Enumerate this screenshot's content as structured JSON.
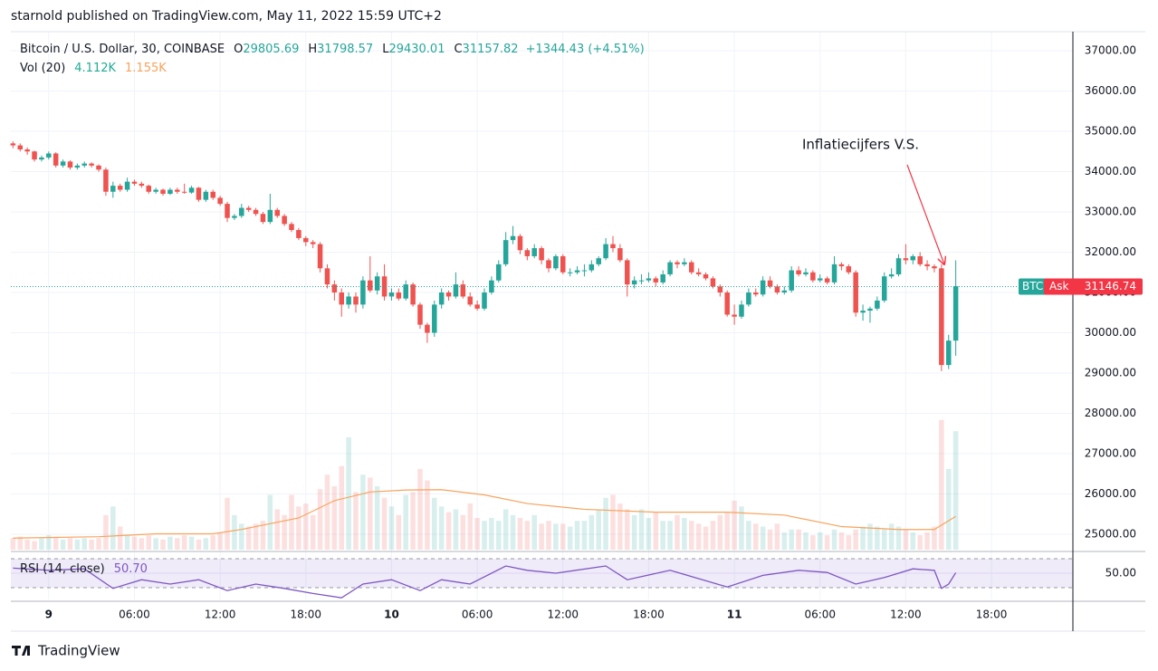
{
  "chart_data": {
    "type": "candlestick",
    "published": "starnold published on TradingView.com, May 11, 2022 15:59 UTC+2",
    "symbol": "Bitcoin / U.S. Dollar, 30, COINBASE",
    "ohlc_letters": [
      "O",
      "H",
      "L",
      "C"
    ],
    "change_label": "+1344.43 (+4.51%)",
    "annotation": "Inflatiecijfers V.S.",
    "logo": "TradingView",
    "up_color": "#26a69a",
    "down_color": "#ef5350",
    "xlim": [
      -0.3,
      148.4
    ],
    "xticks": [
      {
        "value": 5,
        "label": "9"
      },
      {
        "value": 17,
        "label": "06:00"
      },
      {
        "value": 29,
        "label": "12:00"
      },
      {
        "value": 41,
        "label": "18:00"
      },
      {
        "value": 53,
        "label": "10"
      },
      {
        "value": 65,
        "label": "06:00"
      },
      {
        "value": 77,
        "label": "12:00"
      },
      {
        "value": 89,
        "label": "18:00"
      },
      {
        "value": 101,
        "label": "11"
      },
      {
        "value": 113,
        "label": "06:00"
      },
      {
        "value": 125,
        "label": "12:00"
      },
      {
        "value": 137,
        "label": "18:00"
      }
    ],
    "ylim": [
      24618,
      37472
    ],
    "yticks": [
      {
        "value": 25000,
        "label": "25000.00"
      },
      {
        "value": 26000,
        "label": "26000.00"
      },
      {
        "value": 27000,
        "label": "27000.00"
      },
      {
        "value": 28000,
        "label": "28000.00"
      },
      {
        "value": 29000,
        "label": "29000.00"
      },
      {
        "value": 30000,
        "label": "30000.00"
      },
      {
        "value": 31000,
        "label": "31000.00"
      },
      {
        "value": 32000,
        "label": "32000.00"
      },
      {
        "value": 33000,
        "label": "33000.00"
      },
      {
        "value": 34000,
        "label": "34000.00"
      },
      {
        "value": 35000,
        "label": "35000.00"
      },
      {
        "value": 36000,
        "label": "36000.00"
      },
      {
        "value": 37000,
        "label": "37000.00"
      }
    ],
    "grid": true,
    "last_price": 31146.74,
    "price_tag": "BTC",
    "ask_label": "Ask",
    "candles": [
      [
        34700,
        34750,
        34580,
        34650
      ],
      [
        34650,
        34700,
        34500,
        34550
      ],
      [
        34550,
        34600,
        34420,
        34500
      ],
      [
        34500,
        34520,
        34250,
        34300
      ],
      [
        34300,
        34400,
        34250,
        34350
      ],
      [
        34350,
        34500,
        34300,
        34450
      ],
      [
        34450,
        34480,
        34100,
        34150
      ],
      [
        34150,
        34300,
        34100,
        34250
      ],
      [
        34250,
        34280,
        34050,
        34100
      ],
      [
        34100,
        34200,
        34050,
        34150
      ],
      [
        34150,
        34250,
        34100,
        34200
      ],
      [
        34200,
        34230,
        34100,
        34150
      ],
      [
        34150,
        34180,
        34000,
        34050
      ],
      [
        34050,
        34100,
        33400,
        33500
      ],
      [
        33500,
        33750,
        33350,
        33650
      ],
      [
        33650,
        33700,
        33500,
        33550
      ],
      [
        33550,
        33850,
        33500,
        33750
      ],
      [
        33750,
        33800,
        33650,
        33700
      ],
      [
        33700,
        33750,
        33600,
        33650
      ],
      [
        33650,
        33680,
        33450,
        33500
      ],
      [
        33500,
        33600,
        33450,
        33550
      ],
      [
        33550,
        33580,
        33400,
        33450
      ],
      [
        33450,
        33600,
        33420,
        33550
      ],
      [
        33550,
        33600,
        33450,
        33500
      ],
      [
        33500,
        33700,
        33450,
        33480
      ],
      [
        33480,
        33650,
        33450,
        33600
      ],
      [
        33600,
        33620,
        33250,
        33300
      ],
      [
        33300,
        33550,
        33250,
        33500
      ],
      [
        33500,
        33550,
        33300,
        33350
      ],
      [
        33350,
        33400,
        33150,
        33200
      ],
      [
        33200,
        33250,
        32750,
        32850
      ],
      [
        32850,
        32950,
        32800,
        32900
      ],
      [
        32900,
        33200,
        32850,
        33100
      ],
      [
        33100,
        33150,
        33000,
        33050
      ],
      [
        33050,
        33100,
        32900,
        32950
      ],
      [
        32950,
        33000,
        32700,
        32750
      ],
      [
        32750,
        33450,
        32700,
        33050
      ],
      [
        33050,
        33100,
        32850,
        32900
      ],
      [
        32900,
        32950,
        32650,
        32700
      ],
      [
        32700,
        32750,
        32500,
        32550
      ],
      [
        32550,
        32600,
        32300,
        32350
      ],
      [
        32350,
        32400,
        32150,
        32250
      ],
      [
        32250,
        32300,
        32100,
        32200
      ],
      [
        32200,
        32250,
        31500,
        31600
      ],
      [
        31600,
        31700,
        31100,
        31200
      ],
      [
        31200,
        31300,
        30800,
        31000
      ],
      [
        31000,
        31100,
        30400,
        30700
      ],
      [
        30700,
        31000,
        30600,
        30900
      ],
      [
        30900,
        31000,
        30500,
        30700
      ],
      [
        30700,
        31400,
        30600,
        31300
      ],
      [
        31300,
        31900,
        31000,
        31050
      ],
      [
        31050,
        31500,
        30950,
        31400
      ],
      [
        31400,
        31700,
        30800,
        30900
      ],
      [
        30900,
        31100,
        30800,
        31000
      ],
      [
        31000,
        31100,
        30800,
        30850
      ],
      [
        30850,
        31300,
        30800,
        31200
      ],
      [
        31200,
        31250,
        30650,
        30700
      ],
      [
        30700,
        30750,
        30100,
        30200
      ],
      [
        30200,
        30250,
        29750,
        30000
      ],
      [
        30000,
        30800,
        29900,
        30700
      ],
      [
        30700,
        31100,
        30600,
        31000
      ],
      [
        31000,
        31050,
        30800,
        30900
      ],
      [
        30900,
        31500,
        30850,
        31200
      ],
      [
        31200,
        31300,
        30850,
        30900
      ],
      [
        30900,
        31000,
        30650,
        30700
      ],
      [
        30700,
        30800,
        30550,
        30600
      ],
      [
        30600,
        31100,
        30550,
        31000
      ],
      [
        31000,
        31400,
        30950,
        31300
      ],
      [
        31300,
        31800,
        31250,
        31700
      ],
      [
        31700,
        32500,
        31650,
        32300
      ],
      [
        32300,
        32650,
        32200,
        32400
      ],
      [
        32400,
        32450,
        31950,
        32050
      ],
      [
        32050,
        32100,
        31800,
        31900
      ],
      [
        31900,
        32200,
        31850,
        32100
      ],
      [
        32100,
        32150,
        31700,
        31800
      ],
      [
        31800,
        31850,
        31500,
        31600
      ],
      [
        31600,
        31950,
        31550,
        31900
      ],
      [
        31900,
        31950,
        31450,
        31500
      ],
      [
        31500,
        31600,
        31400,
        31500
      ],
      [
        31500,
        31650,
        31450,
        31550
      ],
      [
        31550,
        31700,
        31400,
        31550
      ],
      [
        31550,
        31800,
        31500,
        31700
      ],
      [
        31700,
        31900,
        31650,
        31850
      ],
      [
        31850,
        32350,
        31800,
        32200
      ],
      [
        32200,
        32400,
        32000,
        32100
      ],
      [
        32100,
        32200,
        31750,
        31800
      ],
      [
        31800,
        31850,
        30900,
        31200
      ],
      [
        31200,
        31400,
        31100,
        31300
      ],
      [
        31300,
        31450,
        31200,
        31300
      ],
      [
        31300,
        31500,
        31250,
        31350
      ],
      [
        31350,
        31400,
        31150,
        31250
      ],
      [
        31250,
        31550,
        31200,
        31450
      ],
      [
        31450,
        31800,
        31400,
        31750
      ],
      [
        31750,
        31800,
        31600,
        31700
      ],
      [
        31700,
        31850,
        31650,
        31750
      ],
      [
        31750,
        31800,
        31450,
        31500
      ],
      [
        31500,
        31600,
        31400,
        31450
      ],
      [
        31450,
        31500,
        31300,
        31350
      ],
      [
        31350,
        31400,
        31100,
        31150
      ],
      [
        31150,
        31200,
        30900,
        31000
      ],
      [
        31000,
        31050,
        30400,
        30450
      ],
      [
        30450,
        30700,
        30200,
        30400
      ],
      [
        30400,
        30800,
        30350,
        30700
      ],
      [
        30700,
        31100,
        30650,
        31000
      ],
      [
        31000,
        31100,
        30900,
        30950
      ],
      [
        30950,
        31400,
        30900,
        31300
      ],
      [
        31300,
        31400,
        31100,
        31150
      ],
      [
        31150,
        31200,
        30950,
        31000
      ],
      [
        31000,
        31150,
        30950,
        31050
      ],
      [
        31050,
        31650,
        31000,
        31550
      ],
      [
        31550,
        31650,
        31400,
        31450
      ],
      [
        31450,
        31600,
        31400,
        31500
      ],
      [
        31500,
        31550,
        31250,
        31300
      ],
      [
        31300,
        31450,
        31250,
        31350
      ],
      [
        31350,
        31400,
        31200,
        31250
      ],
      [
        31250,
        31900,
        31200,
        31700
      ],
      [
        31700,
        31750,
        31550,
        31650
      ],
      [
        31650,
        31700,
        31450,
        31500
      ],
      [
        31500,
        31550,
        30400,
        30500
      ],
      [
        30500,
        30700,
        30300,
        30550
      ],
      [
        30550,
        30650,
        30250,
        30600
      ],
      [
        30600,
        30900,
        30550,
        30800
      ],
      [
        30800,
        31500,
        30750,
        31400
      ],
      [
        31400,
        31600,
        31350,
        31450
      ],
      [
        31450,
        31950,
        31400,
        31850
      ],
      [
        31850,
        32200,
        31700,
        31800
      ],
      [
        31800,
        31950,
        31700,
        31900
      ],
      [
        31900,
        32000,
        31650,
        31700
      ],
      [
        31700,
        31800,
        31550,
        31650
      ],
      [
        31650,
        31700,
        31500,
        31600
      ],
      [
        31600,
        31700,
        29050,
        29200
      ],
      [
        29200,
        29950,
        29100,
        29805.69
      ],
      [
        29805.69,
        31798.57,
        29430.01,
        31157.82
      ]
    ],
    "volume_title": "Vol (20)",
    "volume_value_label": "4.112K",
    "volume_ylim": [
      0,
      6000
    ],
    "volumes": [
      400,
      450,
      350,
      300,
      400,
      500,
      450,
      350,
      400,
      350,
      400,
      350,
      400,
      1200,
      1500,
      800,
      500,
      450,
      400,
      500,
      400,
      350,
      450,
      400,
      500,
      450,
      350,
      400,
      500,
      600,
      1800,
      1200,
      900,
      800,
      900,
      1000,
      1900,
      1400,
      1200,
      1900,
      1500,
      1600,
      1200,
      2100,
      2600,
      2200,
      2900,
      3900,
      2000,
      2600,
      2500,
      2200,
      1800,
      1500,
      1200,
      1900,
      2000,
      2800,
      2400,
      1800,
      1500,
      1300,
      1400,
      1200,
      1600,
      1100,
      1000,
      1100,
      1000,
      1400,
      1200,
      1100,
      1000,
      1200,
      900,
      1000,
      900,
      900,
      800,
      1000,
      1000,
      1200,
      1400,
      1800,
      1900,
      1600,
      1400,
      1200,
      1400,
      1100,
      1300,
      1000,
      1000,
      1200,
      1100,
      1000,
      900,
      800,
      1000,
      1200,
      1300,
      1700,
      1500,
      1000,
      900,
      800,
      700,
      900,
      600,
      700,
      700,
      600,
      500,
      600,
      500,
      700,
      600,
      500,
      700,
      800,
      900,
      800,
      700,
      900,
      800,
      700,
      600,
      500,
      600,
      800,
      4500,
      2800,
      4112
    ],
    "volume_ma": {
      "color": "#f7a35c",
      "value_label": "1.155K",
      "x": [
        0,
        12,
        20,
        28,
        32,
        40,
        45,
        50,
        55,
        60,
        66,
        72,
        80,
        90,
        100,
        108,
        116,
        124,
        129,
        132
      ],
      "values": [
        400,
        450,
        550,
        550,
        700,
        1100,
        1700,
        2000,
        2070,
        2080,
        1900,
        1600,
        1400,
        1300,
        1300,
        1200,
        800,
        700,
        700,
        1155
      ]
    },
    "rsi": {
      "name": "RSI (14, close)",
      "color": "#7e57c2",
      "value_label": "50.70",
      "ylim": [
        13.75,
        76.25
      ],
      "bands": [
        30,
        70
      ],
      "yticks": [
        {
          "value": 50,
          "label": "50.00"
        }
      ],
      "x": [
        0,
        5,
        10,
        14,
        18,
        22,
        26,
        30,
        34,
        38,
        42,
        46,
        49,
        53,
        57,
        60,
        64,
        69,
        72,
        76,
        83,
        86,
        92,
        100,
        105,
        110,
        114,
        118,
        122,
        126,
        129,
        130,
        131,
        132
      ],
      "values": [
        57,
        54,
        56,
        29,
        41,
        35,
        41,
        26,
        35,
        29,
        22,
        16,
        35,
        41,
        26,
        41,
        35,
        60,
        54,
        50,
        60,
        41,
        54,
        31,
        47,
        54,
        51,
        35,
        44,
        56,
        54,
        29,
        35,
        50.7
      ]
    }
  }
}
